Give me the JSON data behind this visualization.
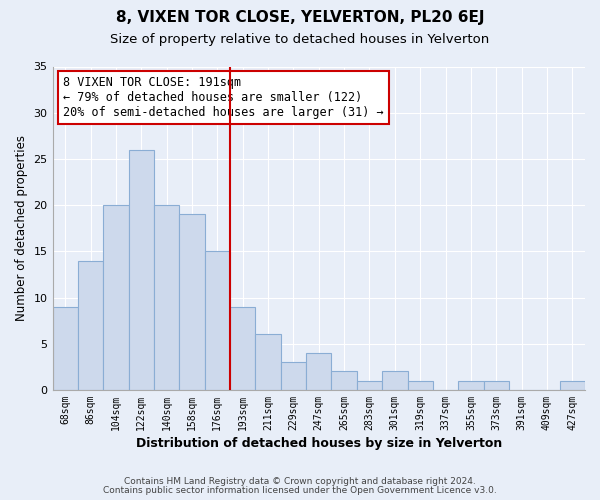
{
  "title": "8, VIXEN TOR CLOSE, YELVERTON, PL20 6EJ",
  "subtitle": "Size of property relative to detached houses in Yelverton",
  "xlabel": "Distribution of detached houses by size in Yelverton",
  "ylabel": "Number of detached properties",
  "bar_labels": [
    "68sqm",
    "86sqm",
    "104sqm",
    "122sqm",
    "140sqm",
    "158sqm",
    "176sqm",
    "193sqm",
    "211sqm",
    "229sqm",
    "247sqm",
    "265sqm",
    "283sqm",
    "301sqm",
    "319sqm",
    "337sqm",
    "355sqm",
    "373sqm",
    "391sqm",
    "409sqm",
    "427sqm"
  ],
  "bar_values": [
    9,
    14,
    20,
    26,
    20,
    19,
    15,
    9,
    6,
    3,
    4,
    2,
    1,
    2,
    1,
    0,
    1,
    1,
    0,
    0,
    1
  ],
  "bar_color": "#cdd9ec",
  "bar_edge_color": "#8aadd4",
  "vline_index": 7,
  "vline_color": "#cc0000",
  "annotation_title": "8 VIXEN TOR CLOSE: 191sqm",
  "annotation_line1": "← 79% of detached houses are smaller (122)",
  "annotation_line2": "20% of semi-detached houses are larger (31) →",
  "annotation_box_color": "#ffffff",
  "annotation_box_edge": "#cc0000",
  "ylim": [
    0,
    35
  ],
  "yticks": [
    0,
    5,
    10,
    15,
    20,
    25,
    30,
    35
  ],
  "footer1": "Contains HM Land Registry data © Crown copyright and database right 2024.",
  "footer2": "Contains public sector information licensed under the Open Government Licence v3.0.",
  "bg_color": "#e8eef8",
  "plot_bg_color": "#e8eef8",
  "grid_color": "#ffffff",
  "title_fontsize": 11,
  "subtitle_fontsize": 9.5
}
